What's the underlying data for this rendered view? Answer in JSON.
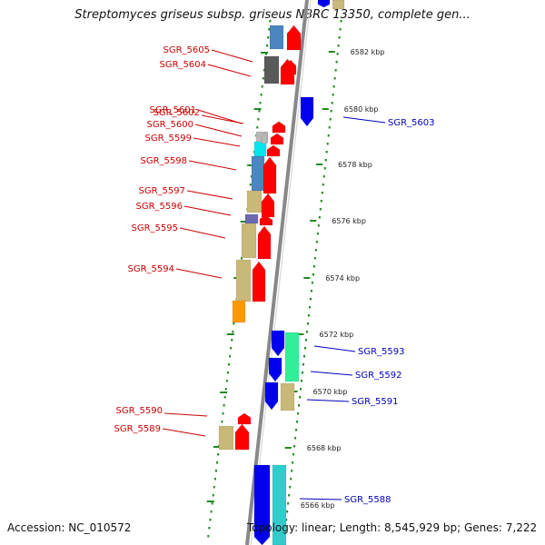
{
  "header": {
    "title": "Streptomyces griseus subsp. griseus NBRC 13350, complete gen..."
  },
  "footer": {
    "accession": "Accession: NC_010572",
    "topology": "Topology: linear; Length: 8,545,929 bp; Genes: 7,222"
  },
  "colors": {
    "forward_label": "#cc0000",
    "reverse_label": "#0000bb",
    "forward_arrow": "#ff0000",
    "reverse_arrow": "#0000ee",
    "backbone": "#888888",
    "tick": "#228822"
  },
  "scale": {
    "unit": "kbp",
    "labels": [
      "6582 kbp",
      "6580 kbp",
      "6578 kbp",
      "6576 kbp",
      "6574 kbp",
      "6572 kbp",
      "6570 kbp",
      "6568 kbp",
      "6566 kbp"
    ]
  },
  "genes_forward": [
    {
      "name": "SGR_5605",
      "color": "#4a86c0"
    },
    {
      "name": "SGR_5604",
      "color": "#5a5a5a"
    },
    {
      "name": "SGR_5602",
      "color": "#ff0000"
    },
    {
      "name": "SGR_5601",
      "color": "#b8b8b8"
    },
    {
      "name": "SGR_5600",
      "color": "#00e5ee"
    },
    {
      "name": "SGR_5599",
      "color": "#4a86c0"
    },
    {
      "name": "SGR_5598",
      "color": "#c9b978"
    },
    {
      "name": "SGR_5597",
      "color": "#6a6ab0"
    },
    {
      "name": "SGR_5596",
      "color": "#c9b978"
    },
    {
      "name": "SGR_5595",
      "color": "#c9b978"
    },
    {
      "name": "SGR_5594",
      "color": "#ff9900"
    },
    {
      "name": "SGR_5590",
      "color": "#ff0000"
    },
    {
      "name": "SGR_5589",
      "color": "#c9b978"
    }
  ],
  "genes_reverse": [
    {
      "name": "SGR_5603",
      "color": "#0000ee"
    },
    {
      "name": "SGR_5593",
      "color": "#33ee99"
    },
    {
      "name": "SGR_5592",
      "color": "#0000ee"
    },
    {
      "name": "SGR_5591",
      "color": "#c9b978"
    },
    {
      "name": "SGR_5588",
      "color": "#33cccc"
    }
  ]
}
